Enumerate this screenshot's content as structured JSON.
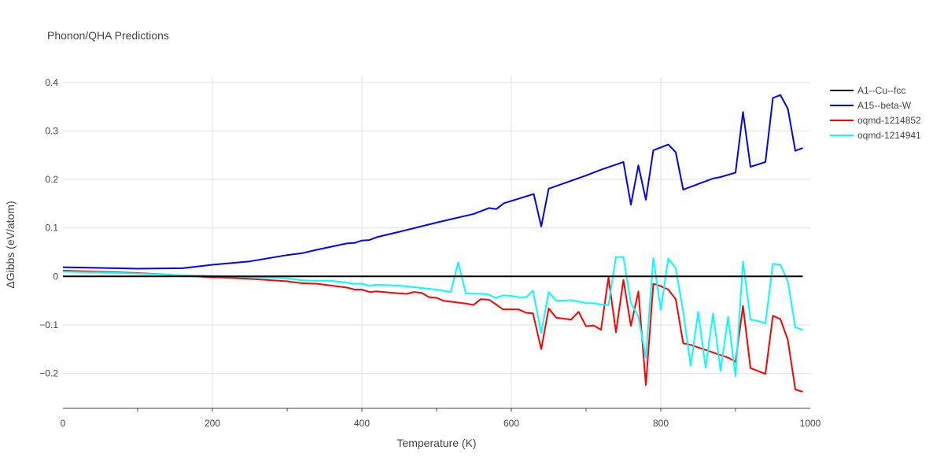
{
  "chart_data": {
    "type": "line",
    "title": "Phonon/QHA Predictions",
    "xlabel": "Temperature (K)",
    "ylabel": "ΔGibbs (eV/atom)",
    "xlim": [
      0,
      1000
    ],
    "ylim": [
      -0.272,
      0.411
    ],
    "xticks": [
      0,
      200,
      400,
      600,
      800,
      1000
    ],
    "yticks": [
      -0.2,
      -0.1,
      0,
      0.1,
      0.2,
      0.3,
      0.4
    ],
    "ytick_labels": [
      "−0.2",
      "−0.1",
      "0",
      "0.1",
      "0.2",
      "0.3",
      "0.4"
    ],
    "grid": true,
    "legend_placement": "top-right",
    "series": [
      {
        "name": "A1--Cu--fcc",
        "color": "#000000",
        "x": [
          0,
          990
        ],
        "y": [
          0,
          0
        ]
      },
      {
        "name": "A15--beta-W",
        "color": "#0000ff",
        "x": [
          0,
          100,
          160,
          200,
          250,
          300,
          320,
          340,
          380,
          390,
          400,
          410,
          420,
          450,
          500,
          550,
          570,
          580,
          590,
          630,
          640,
          650,
          700,
          720,
          750,
          760,
          770,
          780,
          790,
          810,
          820,
          830,
          870,
          880,
          900,
          910,
          920,
          940,
          950,
          960,
          970,
          980,
          990
        ],
        "y": [
          0.019,
          0.016,
          0.017,
          0.024,
          0.031,
          0.044,
          0.048,
          0.055,
          0.068,
          0.069,
          0.074,
          0.075,
          0.081,
          0.092,
          0.111,
          0.129,
          0.141,
          0.139,
          0.151,
          0.17,
          0.103,
          0.181,
          0.208,
          0.22,
          0.236,
          0.148,
          0.229,
          0.158,
          0.26,
          0.272,
          0.256,
          0.179,
          0.202,
          0.205,
          0.214,
          0.339,
          0.226,
          0.236,
          0.368,
          0.374,
          0.346,
          0.259,
          0.265
        ]
      },
      {
        "name": "oqmd-1214852",
        "color": "#ff0000",
        "x": [
          0,
          100,
          150,
          200,
          210,
          250,
          300,
          320,
          340,
          380,
          390,
          400,
          410,
          420,
          450,
          460,
          470,
          480,
          490,
          500,
          509,
          540,
          549,
          559,
          570,
          579,
          589,
          610,
          620,
          629,
          640,
          650,
          660,
          680,
          690,
          700,
          710,
          720,
          730,
          740,
          750,
          760,
          770,
          780,
          790,
          800,
          810,
          820,
          830,
          840,
          891,
          900,
          910,
          920,
          940,
          950,
          960,
          970,
          980,
          990
        ],
        "y": [
          0.012,
          0.007,
          0.003,
          -0.002,
          -0.002,
          -0.005,
          -0.01,
          -0.014,
          -0.015,
          -0.023,
          -0.027,
          -0.027,
          -0.032,
          -0.031,
          -0.035,
          -0.036,
          -0.032,
          -0.034,
          -0.043,
          -0.044,
          -0.05,
          -0.056,
          -0.059,
          -0.047,
          -0.048,
          -0.057,
          -0.068,
          -0.068,
          -0.075,
          -0.076,
          -0.15,
          -0.066,
          -0.085,
          -0.089,
          -0.073,
          -0.103,
          -0.101,
          -0.11,
          -0.002,
          -0.115,
          -0.007,
          -0.102,
          -0.031,
          -0.224,
          -0.015,
          -0.02,
          -0.027,
          -0.047,
          -0.138,
          -0.141,
          -0.168,
          -0.176,
          -0.061,
          -0.189,
          -0.201,
          -0.081,
          -0.088,
          -0.131,
          -0.233,
          -0.238
        ]
      },
      {
        "name": "oqmd-1214941",
        "color": "#00ffff",
        "x": [
          0,
          100,
          150,
          200,
          250,
          300,
          320,
          340,
          360,
          380,
          390,
          400,
          410,
          420,
          450,
          500,
          519,
          529,
          539,
          559,
          569,
          579,
          589,
          600,
          610,
          620,
          629,
          640,
          650,
          660,
          680,
          700,
          710,
          720,
          730,
          740,
          750,
          760,
          770,
          780,
          790,
          800,
          810,
          820,
          830,
          840,
          850,
          860,
          870,
          880,
          890,
          900,
          910,
          920,
          930,
          940,
          950,
          960,
          970,
          980,
          990
        ],
        "y": [
          0.01,
          0.006,
          0.003,
          0.001,
          -0.001,
          -0.004,
          -0.008,
          -0.009,
          -0.009,
          -0.013,
          -0.015,
          -0.015,
          -0.019,
          -0.017,
          -0.019,
          -0.027,
          -0.032,
          0.029,
          -0.035,
          -0.036,
          -0.037,
          -0.044,
          -0.039,
          -0.04,
          -0.043,
          -0.043,
          -0.029,
          -0.117,
          -0.032,
          -0.05,
          -0.049,
          -0.055,
          -0.055,
          -0.058,
          -0.059,
          0.04,
          0.04,
          -0.055,
          -0.083,
          -0.168,
          0.038,
          -0.069,
          0.037,
          0.017,
          -0.073,
          -0.184,
          -0.073,
          -0.188,
          -0.076,
          -0.195,
          -0.083,
          -0.206,
          0.031,
          -0.089,
          -0.092,
          -0.097,
          0.026,
          0.024,
          -0.01,
          -0.105,
          -0.11
        ]
      }
    ]
  }
}
